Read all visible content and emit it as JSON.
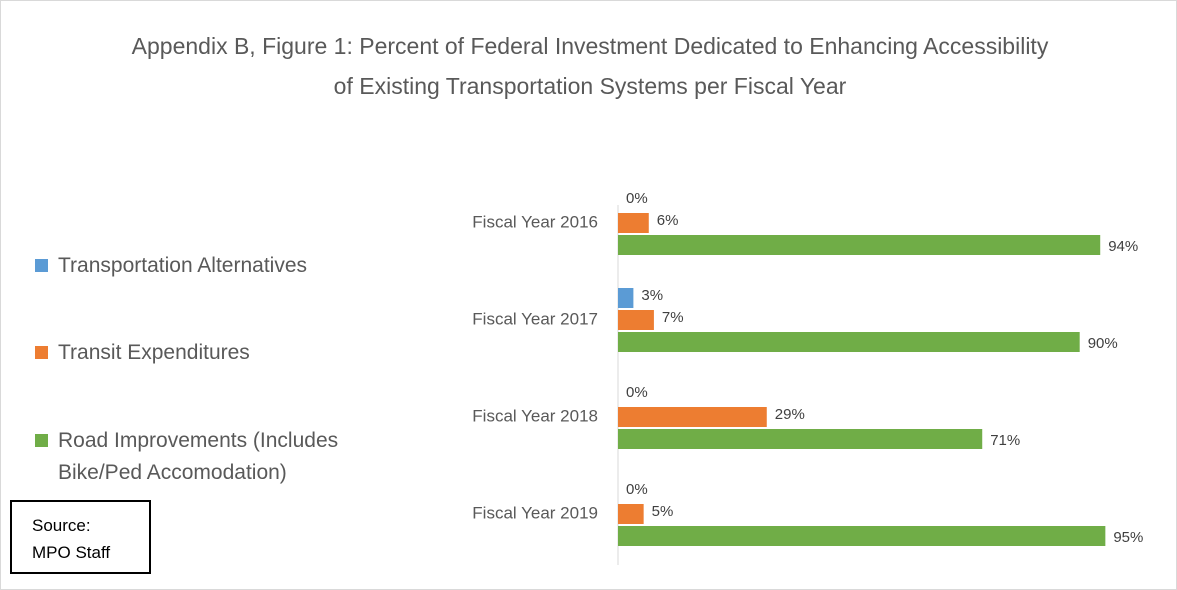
{
  "chart_data": {
    "type": "hbar",
    "title": "Appendix B, Figure 1: Percent of Federal Investment Dedicated to Enhancing Accessibility of Existing Transportation Systems per Fiscal Year",
    "categories": [
      "Fiscal Year 2016",
      "Fiscal Year 2017",
      "Fiscal Year 2018",
      "Fiscal Year 2019"
    ],
    "series": [
      {
        "name": "Transportation Alternatives",
        "color": "#5b9bd5",
        "values": [
          0,
          3,
          0,
          0
        ],
        "value_labels": [
          "0%",
          "3%",
          "0%",
          "0%"
        ]
      },
      {
        "name": "Transit Expenditures",
        "color": "#ed7d31",
        "values": [
          6,
          7,
          29,
          5
        ],
        "value_labels": [
          "6%",
          "7%",
          "29%",
          "5%"
        ]
      },
      {
        "name": "Road Improvements (Includes Bike/Ped Accomodation)",
        "color": "#70ad47",
        "values": [
          94,
          90,
          71,
          95
        ],
        "value_labels": [
          "94%",
          "90%",
          "71%",
          "95%"
        ]
      }
    ],
    "xlim": [
      0,
      100
    ],
    "legend": "left",
    "source": "Source: MPO Staff"
  }
}
